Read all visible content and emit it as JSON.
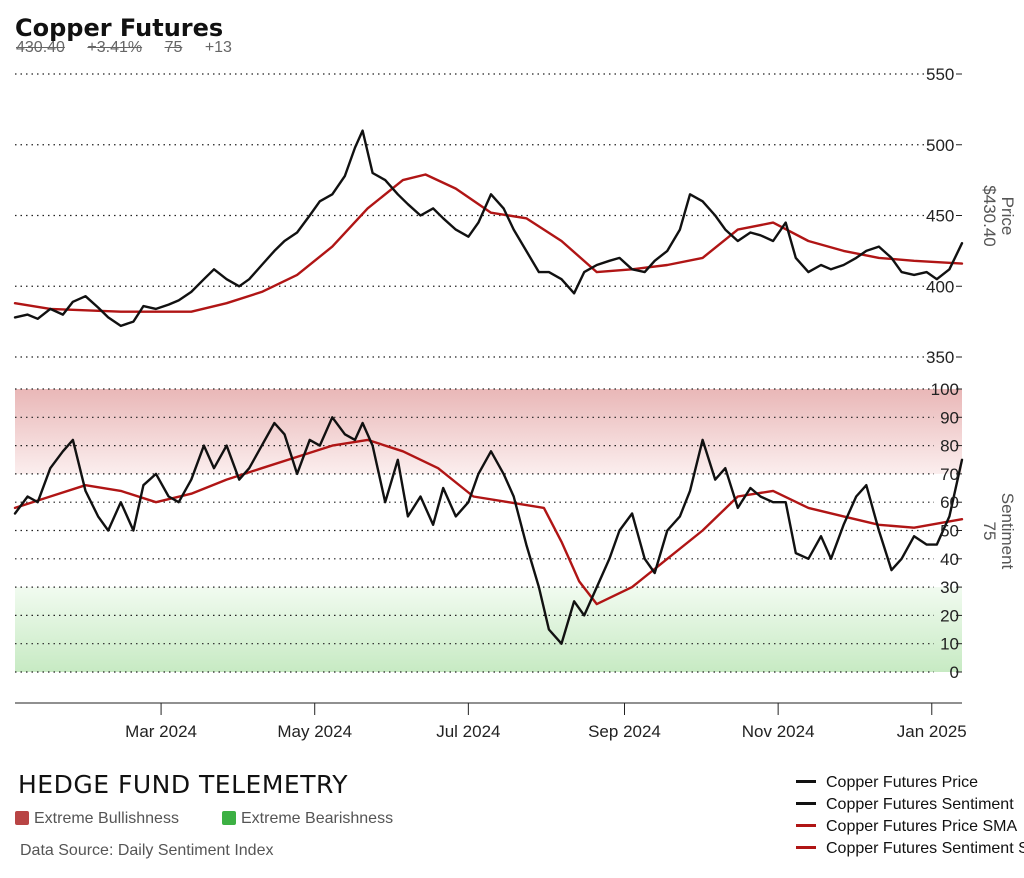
{
  "header": {
    "title": "Copper Futures",
    "price": "430.40",
    "change_pct": "+3.41%",
    "sentiment": "75",
    "sentiment_change": "+13"
  },
  "footer": {
    "brand": "HEDGE FUND TELEMETRY",
    "zones": [
      {
        "label": "Extreme Bullishness",
        "color": "#b84545"
      },
      {
        "label": "Extreme Bearishness",
        "color": "#3cb043"
      }
    ],
    "source": "Data Source: Daily Sentiment Index"
  },
  "legend": [
    {
      "label": "Copper Futures Price",
      "color": "#111111"
    },
    {
      "label": "Copper Futures Sentiment",
      "color": "#111111"
    },
    {
      "label": "Copper Futures Price SMA",
      "color": "#b01515"
    },
    {
      "label": "Copper Futures Sentiment SMA",
      "color": "#b01515"
    }
  ],
  "chart_data": [
    {
      "type": "line",
      "panel": "price",
      "ylabel": "Price",
      "ylabel_value": "$430.40",
      "ylim": [
        350,
        550
      ],
      "yticks": [
        350,
        400,
        450,
        500,
        550
      ],
      "grid": true,
      "xlim": [
        "2024-01-03",
        "2025-01-13"
      ],
      "xticks": [
        {
          "date": "2024-03-01",
          "label": "Mar 2024"
        },
        {
          "date": "2024-05-01",
          "label": "May 2024"
        },
        {
          "date": "2024-07-01",
          "label": "Jul 2024"
        },
        {
          "date": "2024-09-01",
          "label": "Sep 2024"
        },
        {
          "date": "2024-11-01",
          "label": "Nov 2024"
        },
        {
          "date": "2025-01-01",
          "label": "Jan 2025"
        }
      ],
      "series": [
        {
          "name": "Copper Futures Price",
          "color": "#111111",
          "points": [
            [
              "2024-01-03",
              378
            ],
            [
              "2024-01-08",
              380
            ],
            [
              "2024-01-12",
              377
            ],
            [
              "2024-01-17",
              384
            ],
            [
              "2024-01-22",
              380
            ],
            [
              "2024-01-26",
              389
            ],
            [
              "2024-01-31",
              393
            ],
            [
              "2024-02-05",
              385
            ],
            [
              "2024-02-09",
              378
            ],
            [
              "2024-02-14",
              372
            ],
            [
              "2024-02-19",
              375
            ],
            [
              "2024-02-23",
              386
            ],
            [
              "2024-02-28",
              384
            ],
            [
              "2024-03-04",
              387
            ],
            [
              "2024-03-08",
              390
            ],
            [
              "2024-03-13",
              396
            ],
            [
              "2024-03-18",
              405
            ],
            [
              "2024-03-22",
              412
            ],
            [
              "2024-03-27",
              405
            ],
            [
              "2024-04-01",
              400
            ],
            [
              "2024-04-05",
              405
            ],
            [
              "2024-04-10",
              415
            ],
            [
              "2024-04-15",
              425
            ],
            [
              "2024-04-19",
              432
            ],
            [
              "2024-04-24",
              438
            ],
            [
              "2024-04-29",
              450
            ],
            [
              "2024-05-03",
              460
            ],
            [
              "2024-05-08",
              465
            ],
            [
              "2024-05-13",
              478
            ],
            [
              "2024-05-17",
              498
            ],
            [
              "2024-05-20",
              510
            ],
            [
              "2024-05-24",
              480
            ],
            [
              "2024-05-29",
              475
            ],
            [
              "2024-06-03",
              465
            ],
            [
              "2024-06-07",
              458
            ],
            [
              "2024-06-12",
              450
            ],
            [
              "2024-06-17",
              455
            ],
            [
              "2024-06-21",
              448
            ],
            [
              "2024-06-26",
              440
            ],
            [
              "2024-07-01",
              435
            ],
            [
              "2024-07-05",
              445
            ],
            [
              "2024-07-10",
              465
            ],
            [
              "2024-07-15",
              455
            ],
            [
              "2024-07-19",
              440
            ],
            [
              "2024-07-24",
              425
            ],
            [
              "2024-07-29",
              410
            ],
            [
              "2024-08-02",
              410
            ],
            [
              "2024-08-07",
              405
            ],
            [
              "2024-08-12",
              395
            ],
            [
              "2024-08-16",
              410
            ],
            [
              "2024-08-21",
              415
            ],
            [
              "2024-08-26",
              418
            ],
            [
              "2024-08-30",
              420
            ],
            [
              "2024-09-04",
              412
            ],
            [
              "2024-09-09",
              410
            ],
            [
              "2024-09-13",
              418
            ],
            [
              "2024-09-18",
              425
            ],
            [
              "2024-09-23",
              440
            ],
            [
              "2024-09-27",
              465
            ],
            [
              "2024-10-02",
              460
            ],
            [
              "2024-10-07",
              450
            ],
            [
              "2024-10-11",
              440
            ],
            [
              "2024-10-16",
              432
            ],
            [
              "2024-10-21",
              438
            ],
            [
              "2024-10-25",
              436
            ],
            [
              "2024-10-30",
              432
            ],
            [
              "2024-11-04",
              445
            ],
            [
              "2024-11-08",
              420
            ],
            [
              "2024-11-13",
              410
            ],
            [
              "2024-11-18",
              415
            ],
            [
              "2024-11-22",
              412
            ],
            [
              "2024-11-27",
              415
            ],
            [
              "2024-12-02",
              420
            ],
            [
              "2024-12-06",
              425
            ],
            [
              "2024-12-11",
              428
            ],
            [
              "2024-12-16",
              420
            ],
            [
              "2024-12-20",
              410
            ],
            [
              "2024-12-25",
              408
            ],
            [
              "2024-12-30",
              410
            ],
            [
              "2025-01-03",
              405
            ],
            [
              "2025-01-08",
              412
            ],
            [
              "2025-01-13",
              430.4
            ]
          ]
        },
        {
          "name": "Copper Futures Price SMA",
          "color": "#b01515",
          "points": [
            [
              "2024-01-03",
              388
            ],
            [
              "2024-01-17",
              384
            ],
            [
              "2024-01-31",
              383
            ],
            [
              "2024-02-14",
              382
            ],
            [
              "2024-02-28",
              382
            ],
            [
              "2024-03-13",
              382
            ],
            [
              "2024-03-27",
              388
            ],
            [
              "2024-04-10",
              396
            ],
            [
              "2024-04-24",
              408
            ],
            [
              "2024-05-08",
              428
            ],
            [
              "2024-05-22",
              455
            ],
            [
              "2024-06-05",
              475
            ],
            [
              "2024-06-14",
              479
            ],
            [
              "2024-06-26",
              469
            ],
            [
              "2024-07-10",
              452
            ],
            [
              "2024-07-24",
              448
            ],
            [
              "2024-08-07",
              432
            ],
            [
              "2024-08-21",
              410
            ],
            [
              "2024-09-04",
              412
            ],
            [
              "2024-09-18",
              415
            ],
            [
              "2024-10-02",
              420
            ],
            [
              "2024-10-16",
              440
            ],
            [
              "2024-10-30",
              445
            ],
            [
              "2024-11-13",
              432
            ],
            [
              "2024-11-27",
              425
            ],
            [
              "2024-12-11",
              420
            ],
            [
              "2024-12-25",
              418
            ],
            [
              "2025-01-13",
              416
            ]
          ]
        }
      ]
    },
    {
      "type": "line",
      "panel": "sentiment",
      "ylabel": "Sentiment",
      "ylabel_value": "75",
      "ylim": [
        0,
        100
      ],
      "yticks": [
        0,
        10,
        20,
        30,
        40,
        50,
        60,
        70,
        80,
        90,
        100
      ],
      "zones": [
        {
          "label": "Extreme Bullishness",
          "from": 70,
          "to": 100
        },
        {
          "label": "Extreme Bearishness",
          "from": 0,
          "to": 30
        }
      ],
      "series": [
        {
          "name": "Copper Futures Sentiment",
          "color": "#111111",
          "points": [
            [
              "2024-01-03",
              56
            ],
            [
              "2024-01-08",
              62
            ],
            [
              "2024-01-12",
              60
            ],
            [
              "2024-01-17",
              72
            ],
            [
              "2024-01-22",
              78
            ],
            [
              "2024-01-26",
              82
            ],
            [
              "2024-01-31",
              64
            ],
            [
              "2024-02-05",
              55
            ],
            [
              "2024-02-09",
              50
            ],
            [
              "2024-02-14",
              60
            ],
            [
              "2024-02-19",
              50
            ],
            [
              "2024-02-23",
              66
            ],
            [
              "2024-02-28",
              70
            ],
            [
              "2024-03-04",
              62
            ],
            [
              "2024-03-08",
              60
            ],
            [
              "2024-03-13",
              68
            ],
            [
              "2024-03-18",
              80
            ],
            [
              "2024-03-22",
              72
            ],
            [
              "2024-03-27",
              80
            ],
            [
              "2024-04-01",
              68
            ],
            [
              "2024-04-05",
              72
            ],
            [
              "2024-04-10",
              80
            ],
            [
              "2024-04-15",
              88
            ],
            [
              "2024-04-19",
              84
            ],
            [
              "2024-04-24",
              70
            ],
            [
              "2024-04-29",
              82
            ],
            [
              "2024-05-03",
              80
            ],
            [
              "2024-05-08",
              90
            ],
            [
              "2024-05-13",
              84
            ],
            [
              "2024-05-17",
              82
            ],
            [
              "2024-05-20",
              88
            ],
            [
              "2024-05-24",
              80
            ],
            [
              "2024-05-29",
              60
            ],
            [
              "2024-06-03",
              75
            ],
            [
              "2024-06-07",
              55
            ],
            [
              "2024-06-12",
              62
            ],
            [
              "2024-06-17",
              52
            ],
            [
              "2024-06-21",
              65
            ],
            [
              "2024-06-26",
              55
            ],
            [
              "2024-07-01",
              60
            ],
            [
              "2024-07-05",
              70
            ],
            [
              "2024-07-10",
              78
            ],
            [
              "2024-07-15",
              70
            ],
            [
              "2024-07-19",
              62
            ],
            [
              "2024-07-24",
              45
            ],
            [
              "2024-07-29",
              30
            ],
            [
              "2024-08-02",
              15
            ],
            [
              "2024-08-07",
              10
            ],
            [
              "2024-08-12",
              25
            ],
            [
              "2024-08-16",
              20
            ],
            [
              "2024-08-21",
              30
            ],
            [
              "2024-08-26",
              40
            ],
            [
              "2024-08-30",
              50
            ],
            [
              "2024-09-04",
              56
            ],
            [
              "2024-09-09",
              40
            ],
            [
              "2024-09-13",
              35
            ],
            [
              "2024-09-18",
              50
            ],
            [
              "2024-09-23",
              55
            ],
            [
              "2024-09-27",
              64
            ],
            [
              "2024-10-02",
              82
            ],
            [
              "2024-10-07",
              68
            ],
            [
              "2024-10-11",
              72
            ],
            [
              "2024-10-16",
              58
            ],
            [
              "2024-10-21",
              65
            ],
            [
              "2024-10-25",
              62
            ],
            [
              "2024-10-30",
              60
            ],
            [
              "2024-11-04",
              60
            ],
            [
              "2024-11-08",
              42
            ],
            [
              "2024-11-13",
              40
            ],
            [
              "2024-11-18",
              48
            ],
            [
              "2024-11-22",
              40
            ],
            [
              "2024-11-27",
              52
            ],
            [
              "2024-12-02",
              62
            ],
            [
              "2024-12-06",
              66
            ],
            [
              "2024-12-11",
              50
            ],
            [
              "2024-12-16",
              36
            ],
            [
              "2024-12-20",
              40
            ],
            [
              "2024-12-25",
              48
            ],
            [
              "2024-12-30",
              45
            ],
            [
              "2025-01-03",
              45
            ],
            [
              "2025-01-08",
              55
            ],
            [
              "2025-01-13",
              75
            ]
          ]
        },
        {
          "name": "Copper Futures Sentiment SMA",
          "color": "#b01515",
          "points": [
            [
              "2024-01-03",
              58
            ],
            [
              "2024-01-17",
              62
            ],
            [
              "2024-01-31",
              66
            ],
            [
              "2024-02-14",
              64
            ],
            [
              "2024-02-28",
              60
            ],
            [
              "2024-03-13",
              63
            ],
            [
              "2024-03-27",
              68
            ],
            [
              "2024-04-10",
              72
            ],
            [
              "2024-04-24",
              76
            ],
            [
              "2024-05-08",
              80
            ],
            [
              "2024-05-22",
              82
            ],
            [
              "2024-06-05",
              78
            ],
            [
              "2024-06-19",
              72
            ],
            [
              "2024-07-03",
              62
            ],
            [
              "2024-07-17",
              60
            ],
            [
              "2024-07-31",
              58
            ],
            [
              "2024-08-07",
              46
            ],
            [
              "2024-08-14",
              32
            ],
            [
              "2024-08-21",
              24
            ],
            [
              "2024-09-04",
              30
            ],
            [
              "2024-09-18",
              40
            ],
            [
              "2024-10-02",
              50
            ],
            [
              "2024-10-16",
              62
            ],
            [
              "2024-10-30",
              64
            ],
            [
              "2024-11-13",
              58
            ],
            [
              "2024-11-27",
              55
            ],
            [
              "2024-12-11",
              52
            ],
            [
              "2024-12-25",
              51
            ],
            [
              "2025-01-13",
              54
            ]
          ]
        }
      ]
    }
  ]
}
